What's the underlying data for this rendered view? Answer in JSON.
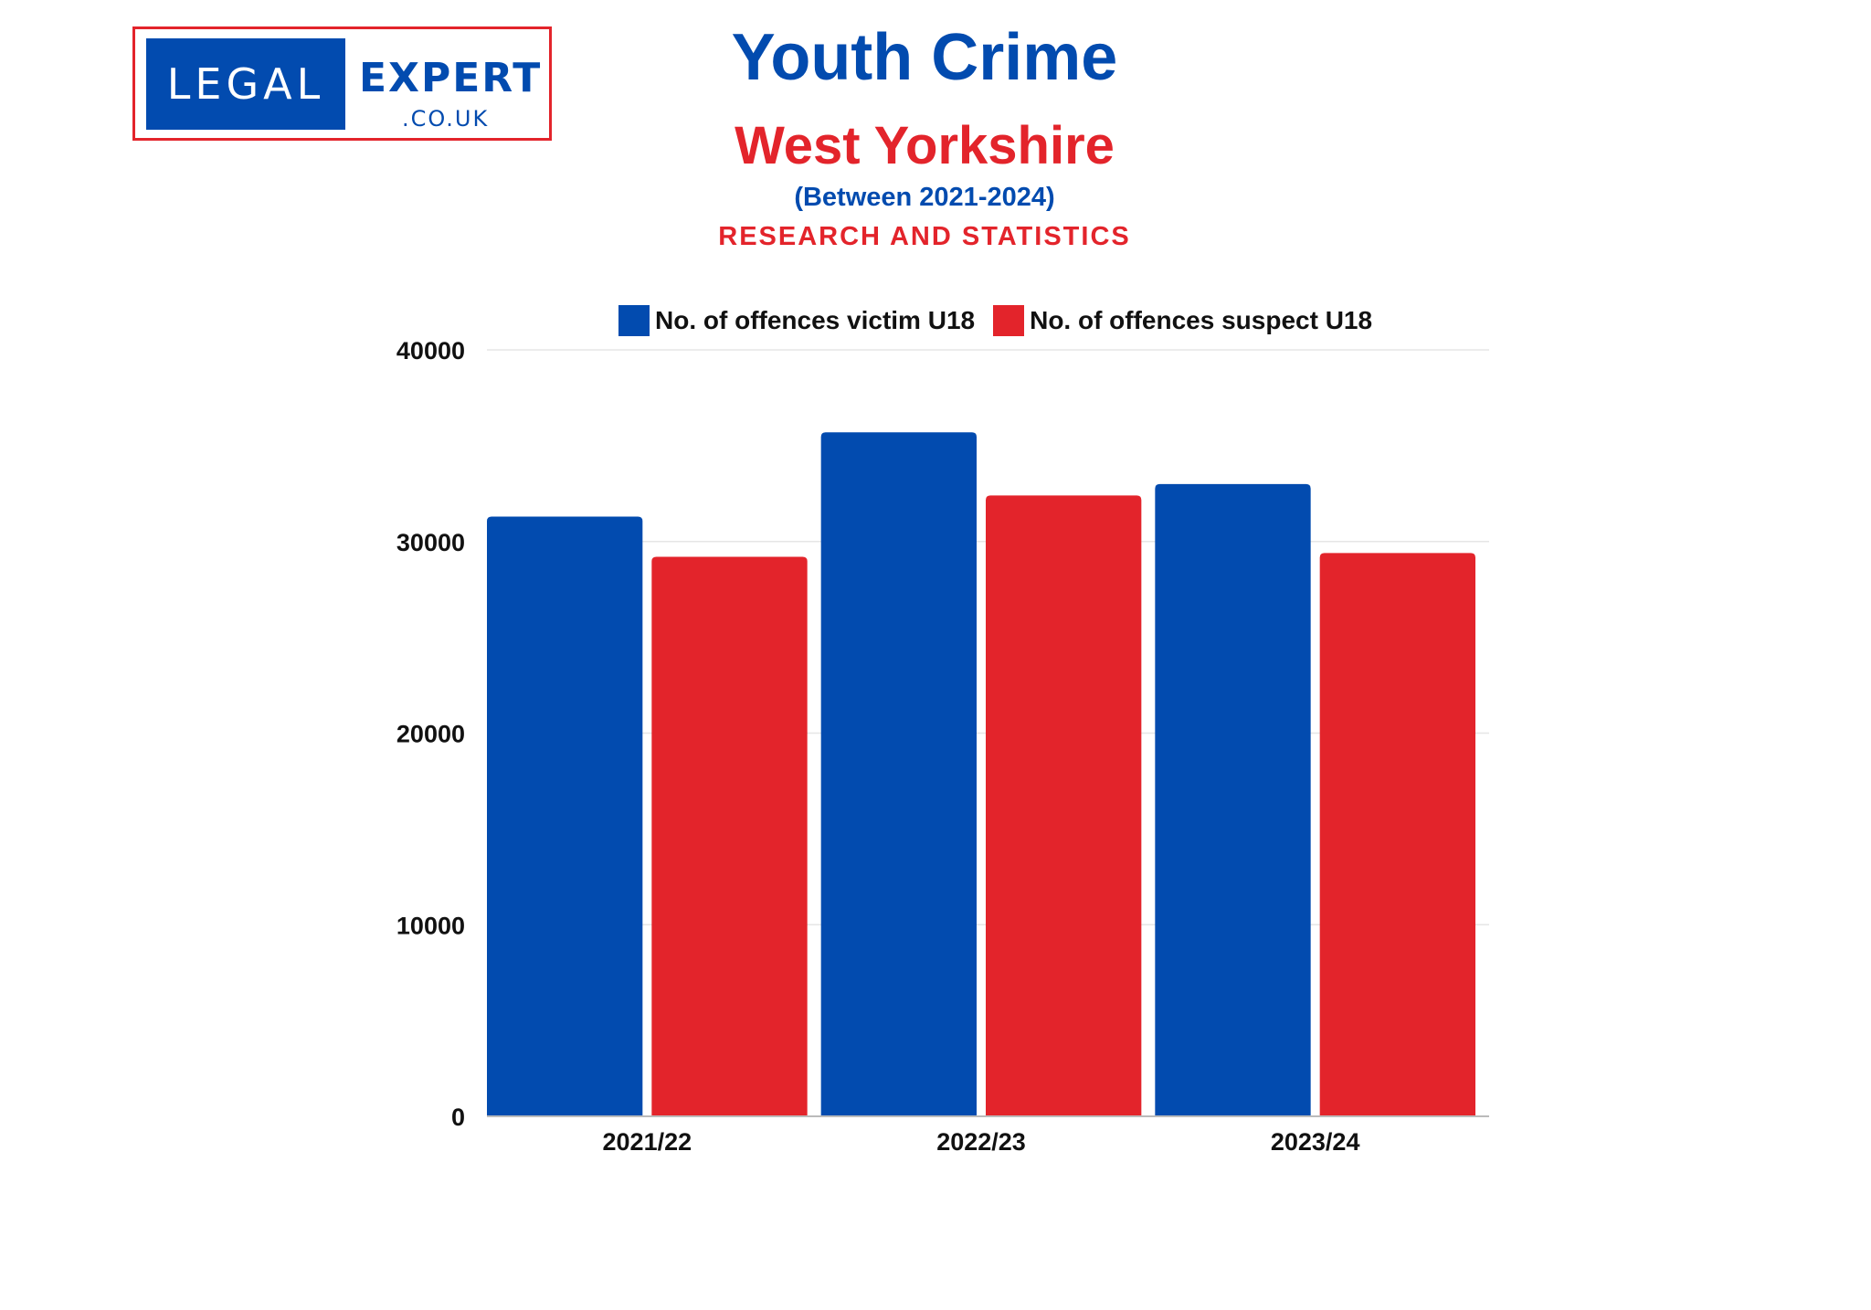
{
  "logo": {
    "left_text": "LEGAL",
    "right_text": "EXPERT",
    "sub_text": ".CO.UK"
  },
  "header": {
    "title": "Youth Crime",
    "subtitle": "West Yorkshire",
    "period": "(Between 2021-2024)",
    "tagline": "RESEARCH AND STATISTICS"
  },
  "colors": {
    "victim": "#024baf",
    "suspect": "#e3242b",
    "grid": "#e6e6e6",
    "axis": "#bbbbbb"
  },
  "chart_data": {
    "type": "bar",
    "categories": [
      "2021/22",
      "2022/23",
      "2023/24"
    ],
    "series": [
      {
        "name": "No. of offences victim U18",
        "values": [
          31300,
          35700,
          33000
        ]
      },
      {
        "name": "No. of offences suspect U18",
        "values": [
          29200,
          32400,
          29400
        ]
      }
    ],
    "ylim": [
      0,
      40000
    ],
    "yticks": [
      0,
      10000,
      20000,
      30000,
      40000
    ],
    "grid": true,
    "legend_position": "top"
  }
}
